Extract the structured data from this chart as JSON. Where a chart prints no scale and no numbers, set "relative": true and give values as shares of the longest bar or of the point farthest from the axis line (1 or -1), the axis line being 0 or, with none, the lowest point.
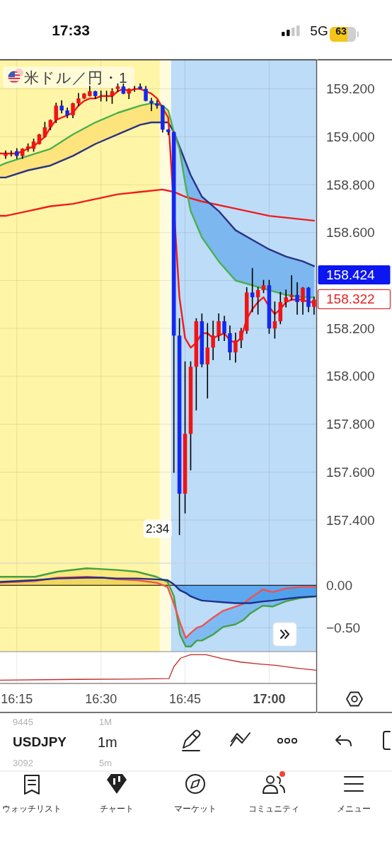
{
  "chart_data": [
    {
      "type": "candlestick",
      "title": "米ドル／円・1",
      "x": [
        16.2167,
        16.2333,
        16.25,
        16.2667,
        16.2833,
        16.3,
        16.3167,
        16.3333,
        16.35,
        16.3667,
        16.3833,
        16.4,
        16.4167,
        16.4333,
        16.45,
        16.4667,
        16.4833,
        16.5,
        16.5167,
        16.5333,
        16.55,
        16.5667,
        16.5833,
        16.6,
        16.6167,
        16.6333,
        16.65,
        16.6667,
        16.6833,
        16.7,
        16.7167,
        16.7333,
        16.75,
        16.7667,
        16.7833,
        16.8,
        16.8167,
        16.8333,
        16.85,
        16.8667,
        16.8833,
        16.9,
        16.9167,
        16.9333,
        16.95,
        16.9667,
        16.9833,
        17.0,
        17.0167,
        17.0333,
        17.05,
        17.0667,
        17.0833,
        17.1,
        17.1167,
        17.1333
      ],
      "ohlc": [
        [
          158.92,
          158.94,
          158.91,
          158.93
        ],
        [
          158.93,
          158.94,
          158.92,
          158.93
        ],
        [
          158.94,
          158.95,
          158.91,
          158.92
        ],
        [
          158.92,
          158.95,
          158.91,
          158.95
        ],
        [
          158.95,
          158.97,
          158.94,
          158.96
        ],
        [
          158.95,
          158.99,
          158.94,
          158.98
        ],
        [
          158.97,
          159.01,
          158.97,
          159.01
        ],
        [
          159.0,
          159.06,
          159.0,
          159.04
        ],
        [
          159.04,
          159.07,
          159.03,
          159.07
        ],
        [
          159.07,
          159.14,
          159.06,
          159.13
        ],
        [
          159.13,
          159.15,
          159.1,
          159.11
        ],
        [
          159.11,
          159.12,
          159.08,
          159.09
        ],
        [
          159.09,
          159.14,
          159.08,
          159.14
        ],
        [
          159.14,
          159.18,
          159.13,
          159.16
        ],
        [
          159.16,
          159.18,
          159.16,
          159.18
        ],
        [
          159.17,
          159.21,
          159.17,
          159.19
        ],
        [
          159.19,
          159.19,
          159.16,
          159.17
        ],
        [
          159.17,
          159.19,
          159.15,
          159.17
        ],
        [
          159.17,
          159.19,
          159.15,
          159.17
        ],
        [
          159.17,
          159.2,
          159.14,
          159.19
        ],
        [
          159.2,
          159.22,
          159.19,
          159.21
        ],
        [
          159.21,
          159.22,
          159.18,
          159.18
        ],
        [
          159.18,
          159.2,
          159.16,
          159.2
        ],
        [
          159.2,
          159.21,
          159.19,
          159.2
        ],
        [
          159.21,
          159.22,
          159.2,
          159.2
        ],
        [
          159.2,
          159.21,
          159.15,
          159.15
        ],
        [
          159.15,
          159.16,
          159.11,
          159.14
        ],
        [
          159.14,
          159.15,
          159.12,
          159.13
        ],
        [
          159.13,
          159.13,
          159.02,
          159.03
        ],
        [
          159.03,
          159.03,
          159.01,
          159.02
        ],
        [
          159.02,
          159.02,
          157.6,
          158.17
        ],
        [
          158.17,
          158.24,
          157.34,
          157.51
        ],
        [
          157.51,
          158.06,
          157.43,
          157.76
        ],
        [
          157.76,
          158.06,
          157.61,
          158.04
        ],
        [
          158.04,
          158.24,
          157.86,
          158.23
        ],
        [
          158.23,
          158.26,
          158.04,
          158.05
        ],
        [
          158.05,
          158.22,
          157.91,
          158.12
        ],
        [
          158.12,
          158.23,
          158.07,
          158.17
        ],
        [
          158.17,
          158.26,
          158.15,
          158.23
        ],
        [
          158.23,
          158.25,
          158.15,
          158.18
        ],
        [
          158.18,
          158.21,
          158.07,
          158.1
        ],
        [
          158.1,
          158.18,
          158.06,
          158.15
        ],
        [
          158.15,
          158.2,
          158.12,
          158.19
        ],
        [
          158.19,
          158.37,
          158.18,
          158.35
        ],
        [
          158.35,
          158.45,
          158.27,
          158.33
        ],
        [
          158.33,
          158.37,
          158.26,
          158.36
        ],
        [
          158.36,
          158.4,
          158.35,
          158.38
        ],
        [
          158.38,
          158.4,
          158.18,
          158.2
        ],
        [
          158.2,
          158.31,
          158.16,
          158.23
        ],
        [
          158.23,
          158.35,
          158.22,
          158.31
        ],
        [
          158.31,
          158.36,
          158.29,
          158.33
        ],
        [
          158.33,
          158.42,
          158.32,
          158.34
        ],
        [
          158.34,
          158.39,
          158.26,
          158.31
        ],
        [
          158.31,
          158.37,
          158.26,
          158.37
        ],
        [
          158.37,
          158.37,
          158.27,
          158.29
        ],
        [
          158.29,
          158.33,
          158.26,
          158.32
        ]
      ],
      "colors": [
        "#f01414",
        "#f01414",
        "#1428f0",
        "#f01414",
        "#f01414",
        "#f01414",
        "#f01414",
        "#f01414",
        "#f01414",
        "#f01414",
        "#1428f0",
        "#1428f0",
        "#f01414",
        "#f01414",
        "#f01414",
        "#f01414",
        "#1428f0",
        "#f01414",
        "#f01414",
        "#f01414",
        "#f01414",
        "#1428f0",
        "#f01414",
        "#f01414",
        "#1428f0",
        "#1428f0",
        "#1428f0",
        "#1428f0",
        "#1428f0",
        "#1428f0",
        "#1428f0",
        "#1428f0",
        "#f01414",
        "#f01414",
        "#f01414",
        "#1428f0",
        "#f01414",
        "#f01414",
        "#f01414",
        "#1428f0",
        "#1428f0",
        "#f01414",
        "#f01414",
        "#f01414",
        "#1428f0",
        "#f01414",
        "#f01414",
        "#1428f0",
        "#f01414",
        "#f01414",
        "#f01414",
        "#f01414",
        "#1428f0",
        "#f01414",
        "#1428f0",
        "#f01414"
      ],
      "series": [
        {
          "type": "line",
          "color": "#fde47c",
          "x": [
            16.2,
            16.2167,
            16.2833,
            16.35,
            16.4167,
            16.4833,
            16.55,
            16.6167,
            16.65,
            16.6833,
            16.7,
            16.7167
          ],
          "values": [
            null,
            null,
            null,
            null,
            null,
            null,
            null,
            null,
            null,
            null,
            null,
            null
          ],
          "lower": [
            158.83,
            158.83,
            158.86,
            158.88,
            158.92,
            158.97,
            159.01,
            159.05,
            159.06,
            159.06,
            159.06,
            159.02
          ],
          "upper": [
            158.88,
            158.89,
            158.92,
            158.95,
            159.01,
            159.06,
            159.1,
            159.13,
            159.14,
            159.13,
            159.11,
            159.02
          ]
        },
        {
          "type": "line",
          "color": "#7cb8ef",
          "x": [
            16.7167,
            16.7333,
            16.75,
            16.7667,
            16.8,
            16.85,
            16.9,
            16.95,
            17.0,
            17.05,
            17.1,
            17.1333
          ],
          "values": [
            null,
            null,
            null,
            null,
            null,
            null,
            null,
            null,
            null,
            null,
            null,
            null
          ],
          "lower": [
            159.02,
            158.95,
            158.81,
            158.69,
            158.58,
            158.48,
            158.4,
            158.38,
            158.36,
            158.34,
            158.33,
            158.33
          ],
          "upper": [
            159.02,
            158.96,
            158.9,
            158.84,
            158.75,
            158.69,
            158.61,
            158.57,
            158.53,
            158.5,
            158.48,
            158.46
          ]
        },
        {
          "type": "line",
          "color": "#f01c1c",
          "x": [
            16.2,
            16.2167,
            16.2833,
            16.35,
            16.4167,
            16.4833,
            16.55,
            16.6167,
            16.6833,
            16.7167,
            16.75,
            16.8,
            16.9,
            17.0,
            17.1333
          ],
          "values": [
            158.67,
            158.67,
            158.69,
            158.71,
            158.72,
            158.74,
            158.76,
            158.77,
            158.78,
            158.77,
            158.75,
            158.73,
            158.7,
            158.67,
            158.65
          ]
        },
        {
          "type": "line",
          "color": "#2a3384",
          "x": [
            16.2,
            16.2167,
            16.2833,
            16.35,
            16.4167,
            16.4833,
            16.55,
            16.6167,
            16.65,
            16.6833,
            16.7,
            16.7167,
            16.7333,
            16.75,
            16.7667,
            16.8,
            16.85,
            16.9,
            16.95,
            17.0,
            17.05,
            17.1,
            17.1333
          ],
          "values": [
            158.83,
            158.83,
            158.86,
            158.88,
            158.92,
            158.97,
            159.01,
            159.05,
            159.06,
            159.06,
            159.06,
            159.02,
            158.96,
            158.9,
            158.84,
            158.75,
            158.69,
            158.61,
            158.57,
            158.53,
            158.5,
            158.48,
            158.46
          ]
        },
        {
          "type": "line",
          "color": "#4caf50",
          "x": [
            16.2,
            16.2167,
            16.2833,
            16.35,
            16.4167,
            16.4833,
            16.55,
            16.6167,
            16.65,
            16.6833,
            16.7,
            16.7167,
            16.7333,
            16.75,
            16.7667,
            16.8,
            16.85,
            16.9,
            16.95,
            17.0,
            17.05,
            17.1,
            17.1333
          ],
          "values": [
            158.88,
            158.89,
            158.92,
            158.95,
            159.01,
            159.06,
            159.1,
            159.13,
            159.14,
            159.13,
            159.11,
            159.02,
            158.95,
            158.81,
            158.69,
            158.58,
            158.48,
            158.4,
            158.38,
            158.36,
            158.34,
            158.33,
            158.33
          ]
        },
        {
          "type": "line",
          "color": "#f21a1a",
          "x": [
            16.2,
            16.2167,
            16.2333,
            16.25,
            16.2667,
            16.2833,
            16.3,
            16.3167,
            16.3333,
            16.35,
            16.3667,
            16.3833,
            16.4,
            16.4167,
            16.4333,
            16.45,
            16.4667,
            16.4833,
            16.5,
            16.5167,
            16.5333,
            16.55,
            16.5667,
            16.5833,
            16.6,
            16.6167,
            16.6333,
            16.65,
            16.6667,
            16.6833,
            16.7,
            16.7333,
            16.75,
            16.7667,
            16.7833,
            16.8,
            16.8167,
            16.8333,
            16.85,
            16.8667,
            16.8833,
            16.9,
            16.9167,
            16.9333,
            16.95,
            16.9667,
            16.9833,
            17.0,
            17.0167,
            17.0333,
            17.05,
            17.0667,
            17.0833,
            17.1,
            17.1167,
            17.1333
          ],
          "values": [
            158.93,
            158.93,
            158.93,
            158.93,
            158.94,
            158.95,
            158.96,
            158.98,
            159.0,
            159.04,
            159.07,
            159.08,
            159.09,
            159.1,
            159.13,
            159.15,
            159.16,
            159.16,
            159.17,
            159.17,
            159.17,
            159.19,
            159.2,
            159.19,
            159.2,
            159.2,
            159.19,
            159.18,
            159.16,
            159.12,
            159.08,
            158.33,
            158.16,
            158.12,
            158.14,
            158.18,
            158.18,
            158.16,
            158.17,
            158.18,
            158.15,
            158.14,
            158.16,
            158.24,
            158.28,
            158.31,
            158.33,
            158.29,
            158.26,
            158.28,
            158.31,
            158.32,
            158.32,
            158.32,
            158.31,
            158.31
          ]
        }
      ],
      "bands": [
        {
          "axis": "x",
          "from": 16.2,
          "to": 16.675,
          "color": "#fff5a6"
        },
        {
          "axis": "x",
          "from": 16.675,
          "to": 16.7083,
          "color": "#fffbdd"
        },
        {
          "axis": "x",
          "from": 16.7083,
          "to": 17.14,
          "color": "#bddcf8"
        }
      ],
      "xlim": [
        16.2,
        17.14
      ],
      "xticks": [
        16.25,
        16.5,
        16.75,
        17
      ],
      "ylim": [
        157.22,
        159.32
      ],
      "yticks": [
        {
          "value": 159.2,
          "label": "159.200"
        },
        {
          "value": 159,
          "label": "159.000"
        },
        {
          "value": 158.8,
          "label": "158.800"
        },
        {
          "value": 158.6,
          "label": "158.600"
        },
        {
          "value": 158.4,
          "label": null
        },
        {
          "value": 158.2,
          "label": "158.200"
        },
        {
          "value": 158,
          "label": "158.000"
        },
        {
          "value": 157.8,
          "label": "157.800"
        },
        {
          "value": 157.6,
          "label": "157.600"
        },
        {
          "value": 157.4,
          "label": "157.400"
        }
      ],
      "grid": true,
      "tick_labels": "y",
      "annotations": [
        "158.424",
        "158.322",
        {
          "text": "2:34",
          "x": 16.7333,
          "y": 157.34
        }
      ]
    },
    {
      "type": "line",
      "x": [
        16.2,
        16.304,
        16.371,
        16.458,
        16.502,
        16.548,
        16.606,
        16.665,
        16.698,
        16.717,
        16.735,
        16.752,
        16.767,
        16.785,
        16.8,
        16.833,
        16.863,
        16.9,
        16.923,
        16.944,
        16.981,
        17.01,
        17.048,
        17.092,
        17.14
      ],
      "series": [
        {
          "type": "area",
          "color": "#e1bb1a",
          "x": [
            16.2,
            16.304,
            16.371,
            16.458,
            16.502,
            16.548,
            16.606,
            16.665,
            16.698,
            16.717
          ],
          "values": [
            0.04,
            0.06,
            0.08,
            0.09,
            0.09,
            0.08,
            0.08,
            0.07,
            0.06,
            0.01
          ]
        },
        {
          "type": "area",
          "color": "#0074e6",
          "x": [
            16.717,
            16.735,
            16.752,
            16.767,
            16.785,
            16.8,
            16.833,
            16.863,
            16.9,
            16.923,
            16.944,
            16.981,
            17.01,
            17.048,
            17.092,
            17.14
          ],
          "values": [
            0.01,
            -0.06,
            -0.09,
            -0.13,
            -0.16,
            -0.18,
            -0.19,
            -0.2,
            -0.21,
            -0.21,
            -0.21,
            -0.19,
            -0.18,
            -0.16,
            -0.14,
            -0.13
          ]
        },
        {
          "type": "line",
          "color": "#fbdd56",
          "x": [
            16.2,
            16.304,
            16.371,
            16.458,
            16.502,
            16.548,
            16.606,
            16.665,
            16.698,
            16.717,
            16.724
          ],
          "values": [
            null,
            null,
            null,
            null,
            null,
            null,
            null,
            null,
            null,
            null,
            null
          ],
          "lower": [
            0.03,
            0.05,
            0.09,
            0.1,
            0.09,
            0.07,
            0.06,
            0.03,
            -0.02,
            -0.22,
            -0.31
          ],
          "upper": [
            0.1,
            0.1,
            0.16,
            0.2,
            0.19,
            0.18,
            0.16,
            0.1,
            0.04,
            -0.13,
            -0.31
          ]
        },
        {
          "type": "line",
          "color": "#419aec",
          "x": [
            16.724,
            16.735,
            16.752,
            16.767,
            16.785,
            16.8,
            16.833,
            16.863,
            16.9,
            16.923,
            16.944,
            16.981,
            17.01,
            17.048,
            17.092,
            17.14
          ],
          "values": [
            null,
            null,
            null,
            null,
            null,
            null,
            null,
            null,
            null,
            null,
            null,
            null,
            null,
            null,
            null,
            null
          ],
          "lower": [
            -0.31,
            -0.58,
            -0.72,
            -0.72,
            -0.65,
            -0.65,
            -0.58,
            -0.49,
            -0.46,
            -0.41,
            -0.33,
            -0.24,
            -0.25,
            -0.19,
            -0.15,
            -0.13
          ],
          "upper": [
            -0.31,
            -0.44,
            -0.62,
            -0.56,
            -0.5,
            -0.48,
            -0.38,
            -0.3,
            -0.25,
            -0.22,
            -0.15,
            -0.05,
            -0.08,
            -0.04,
            -0.02,
            -0.02
          ]
        },
        {
          "color": "#43a047",
          "values": [
            0.1,
            0.1,
            0.16,
            0.2,
            0.19,
            0.18,
            0.16,
            0.1,
            0.04,
            -0.13,
            -0.58,
            -0.72,
            -0.72,
            -0.65,
            -0.65,
            -0.58,
            -0.49,
            -0.46,
            -0.41,
            -0.33,
            -0.24,
            -0.25,
            -0.19,
            -0.15,
            -0.13
          ]
        },
        {
          "color": "#ef5350",
          "values": [
            0.03,
            0.05,
            0.09,
            0.1,
            0.09,
            0.07,
            0.06,
            0.03,
            -0.02,
            -0.22,
            -0.44,
            -0.62,
            -0.56,
            -0.5,
            -0.48,
            -0.38,
            -0.3,
            -0.25,
            -0.22,
            -0.15,
            -0.05,
            -0.08,
            -0.04,
            -0.02,
            -0.02
          ]
        },
        {
          "color": "#1f2f8a",
          "values": [
            0.04,
            0.06,
            0.08,
            0.09,
            0.09,
            0.08,
            0.08,
            0.07,
            0.06,
            0.01,
            -0.06,
            -0.09,
            -0.13,
            -0.16,
            -0.18,
            -0.19,
            -0.2,
            -0.21,
            -0.21,
            -0.21,
            -0.19,
            -0.18,
            -0.16,
            -0.14,
            -0.13
          ]
        }
      ],
      "ref_lines": [
        {
          "axis": "y",
          "value": 0,
          "color": "#000000"
        }
      ],
      "bands": [
        {
          "axis": "x",
          "from": 16.2,
          "to": 16.675,
          "color": "#fff5a6"
        },
        {
          "axis": "x",
          "from": 16.675,
          "to": 16.7083,
          "color": "#fffbdd"
        },
        {
          "axis": "x",
          "from": 16.7083,
          "to": 17.14,
          "color": "#bddcf8"
        }
      ],
      "xlim": [
        16.2,
        17.14
      ],
      "xticks": [
        16.25,
        16.5,
        16.75,
        17
      ],
      "ylim": [
        -0.78,
        0.26
      ],
      "yticks": [
        {
          "value": 0,
          "label": "0.00"
        },
        {
          "value": -0.5,
          "label": "−0.50"
        }
      ],
      "grid": true,
      "tick_labels": "y"
    },
    {
      "type": "line",
      "relative": true,
      "series": [
        {
          "color": "#c62828",
          "x": [
            16.2,
            16.4292,
            16.5771,
            16.7021,
            16.7167,
            16.7375,
            16.7667,
            16.8125,
            16.8625,
            16.9146,
            16.9729,
            17.0188,
            17.0771,
            17.14
          ],
          "values": [
            0,
            0.03,
            0.04,
            0.06,
            0.53,
            0.87,
            1,
            1,
            0.84,
            0.71,
            0.63,
            0.58,
            0.48,
            0.39
          ]
        }
      ],
      "xlim": [
        16.2,
        17.14
      ],
      "xticks": [
        {
          "value": 16.25,
          "label": "16:15"
        },
        {
          "value": 16.5,
          "label": "16:30"
        },
        {
          "value": 16.75,
          "label": "16:45"
        },
        {
          "value": 17,
          "label": "17:00"
        }
      ],
      "grid": "x",
      "tick_labels": "x"
    },
    {
      "type": "other",
      "annotations": [
        "17:33",
        "5G",
        "63",
        "USDJPY",
        "1m",
        "9445",
        "1M",
        "3092",
        "5m",
        "ウォッチリスト",
        "チャート",
        "マーケット",
        "コミュニティ",
        "メニュー"
      ]
    }
  ]
}
